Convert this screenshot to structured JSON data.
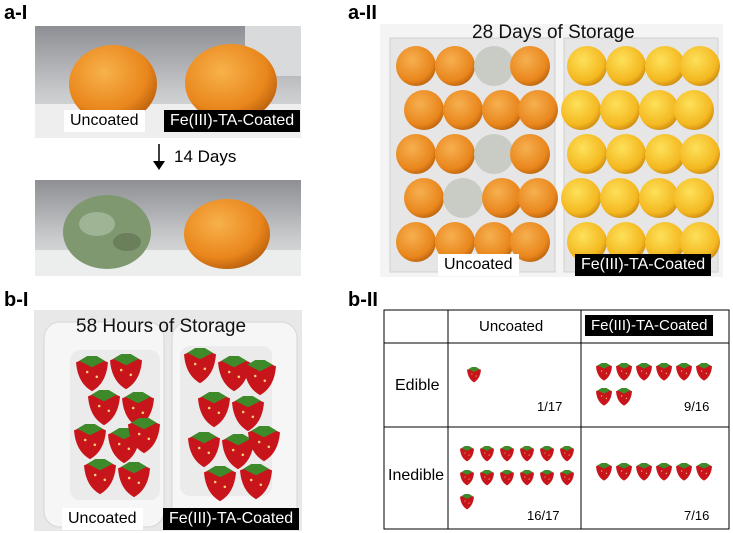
{
  "panels": {
    "a1": {
      "label": "a-I",
      "uncoated_label": "Uncoated",
      "coated_label": "Fe(III)-TA-Coated",
      "arrow_text": "14 Days"
    },
    "a2": {
      "label": "a-II",
      "title": "28 Days of Storage",
      "uncoated_label": "Uncoated",
      "coated_label": "Fe(III)-TA-Coated"
    },
    "b1": {
      "label": "b-I",
      "title": "58 Hours of Storage",
      "uncoated_label": "Uncoated",
      "coated_label": "Fe(III)-TA-Coated"
    },
    "b2": {
      "label": "b-II",
      "col_headers": [
        "Uncoated",
        "Fe(III)-TA-Coated"
      ],
      "row_headers": [
        "Edible",
        "Inedible"
      ],
      "counts": {
        "edible_uncoated": "1/17",
        "edible_coated": "9/16",
        "inedible_uncoated": "16/17",
        "inedible_coated": "7/16"
      }
    }
  },
  "colors": {
    "orange": "#e9861c",
    "moldy": "#7f9870",
    "strawberry": "#c8151c",
    "leaf": "#3e8a2a",
    "tray": "#f2f0f0",
    "box": "#efeeee"
  }
}
